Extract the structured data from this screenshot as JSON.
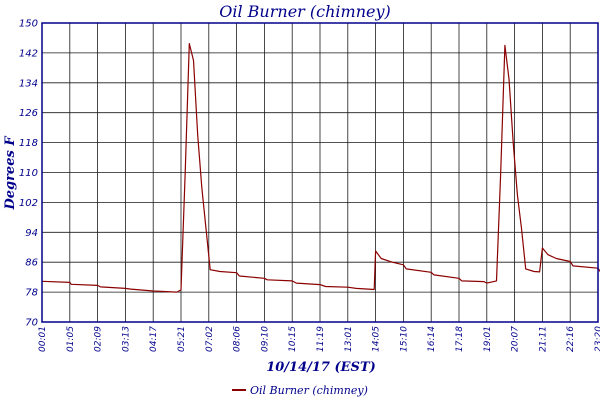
{
  "chart_data": {
    "type": "line",
    "title": "Oil Burner (chimney)",
    "xlabel": "10/14/17 (EST)",
    "ylabel": "Degrees F",
    "ylim": [
      70,
      150
    ],
    "yticks": [
      70,
      78,
      86,
      94,
      102,
      110,
      118,
      126,
      134,
      142,
      150
    ],
    "xticks": [
      "00:01",
      "01:05",
      "02:09",
      "03:13",
      "04:17",
      "05:21",
      "07:02",
      "08:06",
      "09:10",
      "10:15",
      "11:19",
      "13:01",
      "14:05",
      "15:10",
      "16:14",
      "17:18",
      "19:01",
      "20:07",
      "21:11",
      "22:16",
      "23:20"
    ],
    "grid": true,
    "legend_position": "bottom",
    "colors": {
      "series": "#8b0000",
      "axis": "#00008b",
      "grid": "#1a1a1a"
    },
    "series": [
      {
        "name": "Oil Burner (chimney)",
        "points": [
          [
            0,
            80.9
          ],
          [
            1,
            80.6
          ],
          [
            1.05,
            80.1
          ],
          [
            2,
            79.8
          ],
          [
            2.1,
            79.4
          ],
          [
            3,
            79.0
          ],
          [
            3.2,
            78.8
          ],
          [
            4,
            78.3
          ],
          [
            4.85,
            78.0
          ],
          [
            5.0,
            78.6
          ],
          [
            5.15,
            110
          ],
          [
            5.3,
            144.5
          ],
          [
            5.45,
            140
          ],
          [
            5.6,
            120
          ],
          [
            5.75,
            106
          ],
          [
            5.9,
            95
          ],
          [
            6.05,
            84.0
          ],
          [
            6.4,
            83.5
          ],
          [
            7.0,
            83.2
          ],
          [
            7.1,
            82.3
          ],
          [
            8.0,
            81.7
          ],
          [
            8.1,
            81.3
          ],
          [
            9.0,
            81.0
          ],
          [
            9.15,
            80.4
          ],
          [
            10.0,
            80.0
          ],
          [
            10.2,
            79.5
          ],
          [
            11.0,
            79.3
          ],
          [
            11.3,
            79.0
          ],
          [
            11.95,
            78.7
          ],
          [
            12.0,
            89.0
          ],
          [
            12.2,
            87.0
          ],
          [
            12.6,
            86.0
          ],
          [
            13.0,
            85.3
          ],
          [
            13.1,
            84.2
          ],
          [
            14.0,
            83.3
          ],
          [
            14.1,
            82.6
          ],
          [
            15.0,
            81.7
          ],
          [
            15.1,
            81.0
          ],
          [
            15.9,
            80.8
          ],
          [
            16.0,
            80.4
          ],
          [
            16.35,
            81.0
          ],
          [
            16.5,
            110
          ],
          [
            16.65,
            144.0
          ],
          [
            16.8,
            135
          ],
          [
            16.95,
            118
          ],
          [
            17.1,
            104
          ],
          [
            17.25,
            95
          ],
          [
            17.4,
            84.2
          ],
          [
            17.7,
            83.5
          ],
          [
            17.9,
            83.4
          ],
          [
            18.0,
            89.8
          ],
          [
            18.2,
            88.0
          ],
          [
            18.5,
            87.0
          ],
          [
            19.0,
            86.2
          ],
          [
            19.1,
            85.0
          ],
          [
            20.0,
            84.4
          ],
          [
            20.1,
            83.3
          ],
          [
            21.0,
            82.8
          ],
          [
            21.15,
            81.7
          ],
          [
            22.0,
            81.3
          ],
          [
            22.2,
            80.7
          ],
          [
            23.0,
            80.4
          ]
        ]
      }
    ]
  }
}
